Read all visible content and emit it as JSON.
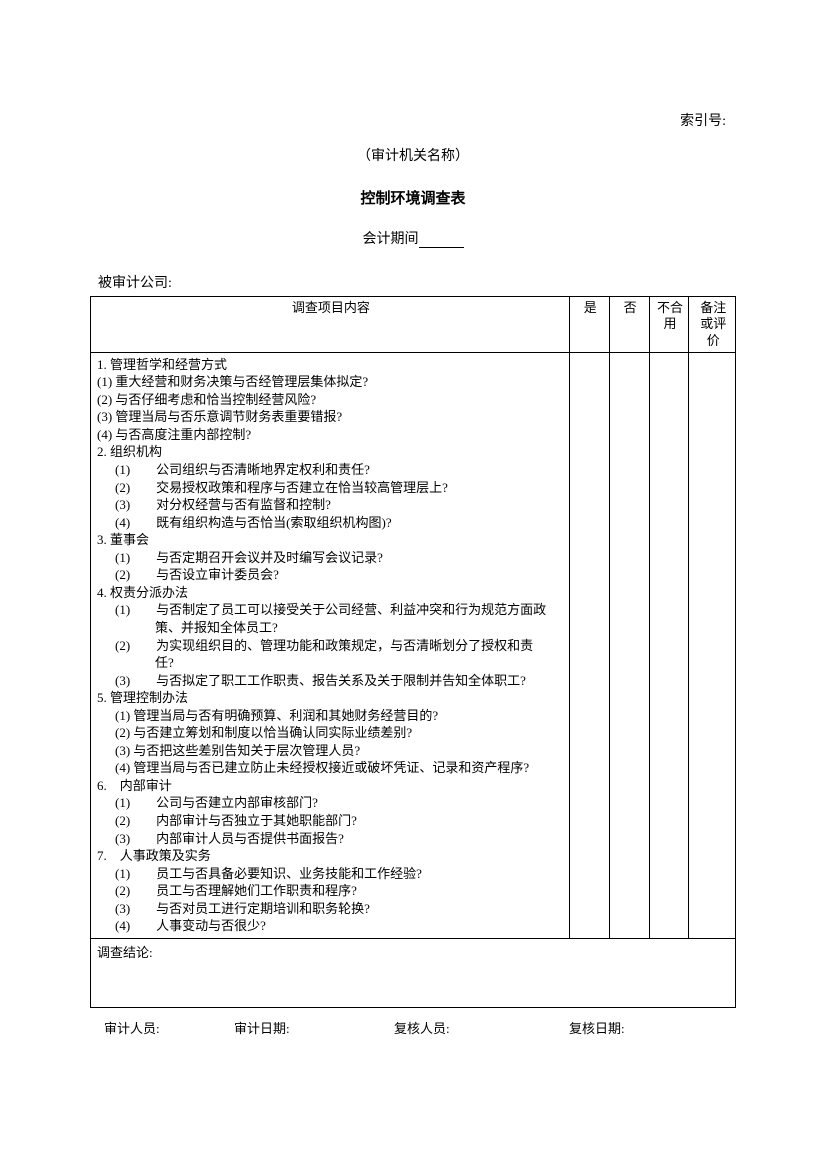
{
  "index_label": "索引号:",
  "org_name": "（审计机关名称）",
  "title": "控制环境调查表",
  "period_label": "会计期间",
  "audited_label": "被审计公司:",
  "columns": {
    "c0": "调查项目内容",
    "c1": "是",
    "c2": "否",
    "c3": "不合用",
    "c4": "备注或评价"
  },
  "sections": [
    {
      "text": "1. 管理哲学和经营方式",
      "cls": "indent1"
    },
    {
      "text": "(1) 重大经营和财务决策与否经管理层集体拟定?",
      "cls": "indent1"
    },
    {
      "text": "(2) 与否仔细考虑和恰当控制经营风险?",
      "cls": "indent1"
    },
    {
      "text": "(3) 管理当局与否乐意调节财务表重要错报?",
      "cls": "indent1"
    },
    {
      "text": "(4) 与否高度注重内部控制?",
      "cls": "indent1"
    },
    {
      "text": "2.  组织机构",
      "cls": "indent1"
    },
    {
      "text": "(1)　　公司组织与否清晰地界定权利和责任?",
      "cls": "indent2"
    },
    {
      "text": "(2)　　交易授权政策和程序与否建立在恰当较高管理层上?",
      "cls": "indent2"
    },
    {
      "text": "(3)　　对分权经营与否有监督和控制?",
      "cls": "indent2"
    },
    {
      "text": "(4)　　既有组织构造与否恰当(索取组织机构图)?",
      "cls": "indent2"
    },
    {
      "text": "3.  董事会",
      "cls": "indent1"
    },
    {
      "text": "(1)　　与否定期召开会议并及时编写会议记录?",
      "cls": "indent2"
    },
    {
      "text": "(2)　　与否设立审计委员会?",
      "cls": "indent2"
    },
    {
      "text": "4.  权责分派办法",
      "cls": "indent1"
    },
    {
      "text": "(1)　　与否制定了员工可以接受关于公司经营、利益冲突和行为规范方面政",
      "cls": "indent2"
    },
    {
      "text": "策、并报知全体员工?",
      "cls": "indent2b"
    },
    {
      "text": "(2)　　为实现组织目的、管理功能和政策规定，与否清晰划分了授权和责",
      "cls": "indent2"
    },
    {
      "text": "任?",
      "cls": "indent2b"
    },
    {
      "text": "(3)　　与否拟定了职工工作职责、报告关系及关于限制并告知全体职工?",
      "cls": "indent2"
    },
    {
      "text": "5.  管理控制办法",
      "cls": "indent1"
    },
    {
      "text": "(1) 管理当局与否有明确预算、利润和其她财务经营目的?",
      "cls": "indent2"
    },
    {
      "text": "(2) 与否建立筹划和制度以恰当确认同实际业绩差别?",
      "cls": "indent2"
    },
    {
      "text": "(3) 与否把这些差别告知关于层次管理人员?",
      "cls": "indent2"
    },
    {
      "text": "(4) 管理当局与否已建立防止未经授权接近或破坏凭证、记录和资产程序?",
      "cls": "indent2"
    },
    {
      "text": "6.　内部审计",
      "cls": "indent1"
    },
    {
      "text": "(1)　　公司与否建立内部审核部门?",
      "cls": "indent2"
    },
    {
      "text": "(2)　　内部审计与否独立于其她职能部门?",
      "cls": "indent2"
    },
    {
      "text": "(3)　　内部审计人员与否提供书面报告?",
      "cls": "indent2"
    },
    {
      "text": "7.　人事政策及实务",
      "cls": "indent1"
    },
    {
      "text": "(1)　　员工与否具备必要知识、业务技能和工作经验?",
      "cls": "indent2"
    },
    {
      "text": "(2)　　员工与否理解她们工作职责和程序?",
      "cls": "indent2"
    },
    {
      "text": "(3)　　与否对员工进行定期培训和职务轮换?",
      "cls": "indent2"
    },
    {
      "text": "(4)　　人事变动与否很少?",
      "cls": "indent2"
    }
  ],
  "conclusion_label": "调查结论:",
  "footer": {
    "auditor": "审计人员:",
    "audit_date": "审计日期:",
    "reviewer": "复核人员:",
    "review_date": "复核日期:"
  },
  "col_widths": {
    "c0": "432",
    "c1": "36",
    "c2": "36",
    "c3": "36",
    "c4": "42"
  }
}
